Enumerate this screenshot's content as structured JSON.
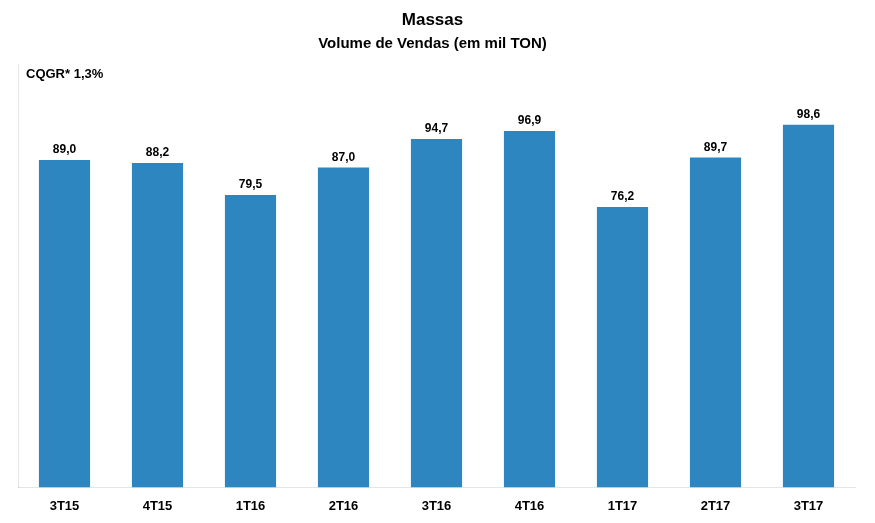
{
  "chart_data": {
    "type": "bar",
    "title": "Massas",
    "subtitle": "Volume de Vendas (em mil TON)",
    "annotations": [
      "CQGR* 1,3%"
    ],
    "categories": [
      "3T15",
      "4T15",
      "1T16",
      "2T16",
      "3T16",
      "4T16",
      "1T17",
      "2T17",
      "3T17"
    ],
    "values": [
      89.0,
      88.2,
      79.5,
      87.0,
      94.7,
      96.9,
      76.2,
      89.7,
      98.6
    ],
    "value_labels": [
      "89,0",
      "88,2",
      "79,5",
      "87,0",
      "94,7",
      "96,9",
      "76,2",
      "89,7",
      "98,6"
    ],
    "data_labels": true,
    "color": "#2E86C1",
    "ylim": [
      0,
      115
    ],
    "grid": false,
    "tick_labels": "x"
  }
}
